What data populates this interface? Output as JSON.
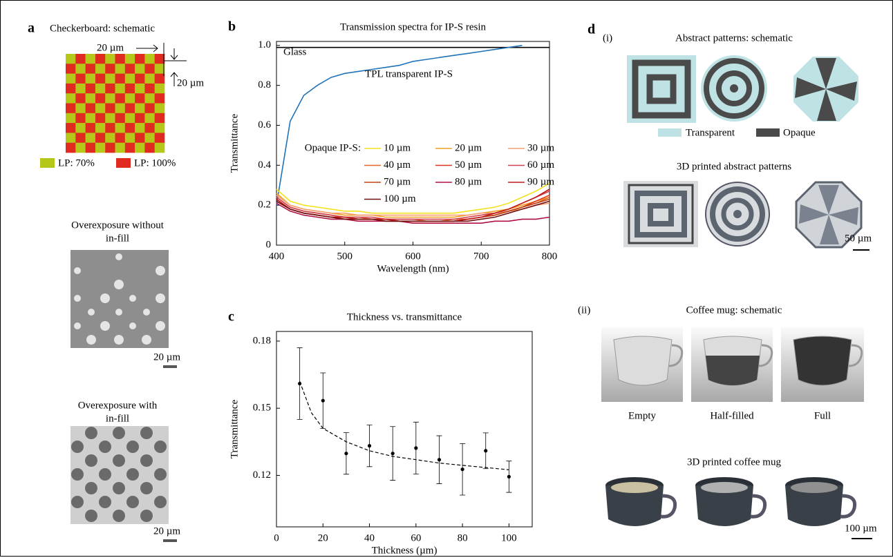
{
  "panel_a": {
    "label": "a",
    "title": "Checkerboard: schematic",
    "dimensions": [
      "20 µm",
      "20 µm"
    ],
    "legend": [
      "LP: 70%",
      "LP: 100%"
    ],
    "micrographs": [
      {
        "title": [
          "Overexposure without",
          "in-fill"
        ],
        "scale": "20 µm"
      },
      {
        "title": [
          "Overexposure with",
          "in-fill"
        ],
        "scale": "20 µm"
      }
    ]
  },
  "panel_d": {
    "label": "d",
    "parts": [
      {
        "label": "(i)",
        "title": "Abstract patterns: schematic",
        "legend": [
          "Transparent",
          "Opaque"
        ],
        "subtitle": "3D printed abstract patterns",
        "scale": "50 µm"
      },
      {
        "label": "(ii)",
        "title": "Coffee mug: schematic",
        "captions": [
          "Empty",
          "Half-filled",
          "Full"
        ],
        "subtitle": "3D printed coffee mug",
        "scale": "100 µm"
      }
    ]
  },
  "chart_data": [
    {
      "type": "line",
      "label": "b",
      "title": "Transmission spectra for IP-S resin",
      "x_label": "Wavelength (nm)",
      "y_label": "Transmittance",
      "xlim": [
        400,
        800
      ],
      "ylim": [
        0,
        1.02
      ],
      "xticks": [
        400,
        500,
        600,
        700,
        800
      ],
      "yticks": [
        0,
        0.2,
        0.4,
        0.6,
        0.8,
        {
          "value": 1,
          "label": "1.0"
        }
      ],
      "legend_title": "Opaque IP-S:",
      "x": [
        400,
        420,
        440,
        460,
        480,
        500,
        520,
        540,
        560,
        580,
        600,
        620,
        640,
        660,
        680,
        700,
        720,
        740,
        760,
        780,
        800
      ],
      "series": [
        {
          "name": "Glass",
          "color": "#000000",
          "values": [
            0.99,
            0.99,
            0.99,
            0.99,
            0.99,
            0.99,
            0.99,
            0.99,
            0.99,
            0.99,
            0.99,
            0.99,
            0.99,
            0.99,
            0.99,
            0.99,
            0.99,
            0.99,
            0.99,
            0.99,
            0.99
          ]
        },
        {
          "name": "TPL transparent IP-S",
          "color": "#1f72b8",
          "values": [
            0.2,
            0.62,
            0.75,
            0.8,
            0.84,
            0.86,
            0.87,
            0.88,
            0.89,
            0.9,
            0.92,
            0.93,
            0.94,
            0.95,
            0.96,
            0.97,
            0.98,
            0.99,
            1.0,
            null,
            null
          ]
        },
        {
          "name": "10 µm",
          "color": "#f2e21a",
          "values": [
            0.28,
            0.22,
            0.2,
            0.19,
            0.18,
            0.17,
            0.17,
            0.16,
            0.16,
            0.16,
            0.16,
            0.16,
            0.16,
            0.16,
            0.17,
            0.18,
            0.19,
            0.21,
            0.24,
            0.27,
            0.31
          ]
        },
        {
          "name": "20 µm",
          "color": "#f0a020",
          "values": [
            0.26,
            0.2,
            0.18,
            0.17,
            0.16,
            0.15,
            0.15,
            0.15,
            0.14,
            0.14,
            0.14,
            0.14,
            0.14,
            0.14,
            0.15,
            0.16,
            0.17,
            0.18,
            0.2,
            0.22,
            0.24
          ]
        },
        {
          "name": "30 µm",
          "color": "#f4a070",
          "values": [
            0.25,
            0.2,
            0.18,
            0.17,
            0.16,
            0.16,
            0.15,
            0.15,
            0.15,
            0.15,
            0.15,
            0.15,
            0.15,
            0.15,
            0.15,
            0.16,
            0.16,
            0.17,
            0.18,
            0.2,
            0.21
          ]
        },
        {
          "name": "40 µm",
          "color": "#e8662a",
          "values": [
            0.24,
            0.19,
            0.17,
            0.16,
            0.15,
            0.14,
            0.14,
            0.13,
            0.13,
            0.13,
            0.13,
            0.12,
            0.12,
            0.13,
            0.13,
            0.14,
            0.15,
            0.17,
            0.19,
            0.21,
            0.24
          ]
        },
        {
          "name": "50 µm",
          "color": "#e03020",
          "values": [
            0.23,
            0.18,
            0.16,
            0.15,
            0.14,
            0.14,
            0.13,
            0.13,
            0.13,
            0.12,
            0.12,
            0.12,
            0.12,
            0.12,
            0.13,
            0.14,
            0.15,
            0.17,
            0.19,
            0.22,
            0.25
          ]
        },
        {
          "name": "60 µm",
          "color": "#d04050",
          "values": [
            0.24,
            0.19,
            0.17,
            0.16,
            0.15,
            0.14,
            0.14,
            0.14,
            0.13,
            0.13,
            0.13,
            0.13,
            0.13,
            0.13,
            0.14,
            0.15,
            0.16,
            0.18,
            0.21,
            0.24,
            0.27
          ]
        },
        {
          "name": "70 µm",
          "color": "#c04010",
          "values": [
            0.22,
            0.18,
            0.16,
            0.15,
            0.14,
            0.13,
            0.13,
            0.13,
            0.12,
            0.12,
            0.12,
            0.12,
            0.12,
            0.12,
            0.13,
            0.14,
            0.15,
            0.17,
            0.19,
            0.21,
            0.23
          ]
        },
        {
          "name": "80 µm",
          "color": "#b01040",
          "values": [
            0.21,
            0.17,
            0.15,
            0.14,
            0.13,
            0.13,
            0.12,
            0.12,
            0.12,
            0.12,
            0.11,
            0.11,
            0.11,
            0.11,
            0.11,
            0.11,
            0.12,
            0.12,
            0.13,
            0.13,
            0.14
          ]
        },
        {
          "name": "90 µm",
          "color": "#c01818",
          "values": [
            0.23,
            0.18,
            0.16,
            0.15,
            0.14,
            0.14,
            0.13,
            0.13,
            0.13,
            0.12,
            0.12,
            0.12,
            0.12,
            0.12,
            0.13,
            0.14,
            0.16,
            0.18,
            0.21,
            0.24,
            0.28
          ]
        },
        {
          "name": "100 µm",
          "color": "#701010",
          "values": [
            0.22,
            0.18,
            0.16,
            0.15,
            0.14,
            0.13,
            0.13,
            0.13,
            0.12,
            0.12,
            0.12,
            0.12,
            0.12,
            0.12,
            0.12,
            0.13,
            0.14,
            0.16,
            0.18,
            0.2,
            0.22
          ]
        }
      ]
    },
    {
      "type": "scatter",
      "label": "c",
      "title": "Thickness vs. transmittance",
      "x_label": "Thickness (µm)",
      "y_label": "Transmittance",
      "xlim": [
        0,
        110
      ],
      "ylim": [
        0.097,
        0.1843
      ],
      "xticks": [
        0,
        20,
        40,
        60,
        80,
        100
      ],
      "yticks": [
        0.12,
        0.15,
        0.18
      ],
      "color": "#000000",
      "x": [
        10,
        20,
        30,
        40,
        50,
        60,
        70,
        80,
        90,
        100
      ],
      "values": [
        0.161,
        0.1534,
        0.1298,
        0.1332,
        0.1298,
        0.1322,
        0.127,
        0.1227,
        0.131,
        0.1194
      ],
      "errors": [
        0.016,
        0.0124,
        0.0093,
        0.0093,
        0.012,
        0.0116,
        0.0107,
        0.0115,
        0.008,
        0.007
      ],
      "fit": {
        "color": "#000000",
        "dashed": true,
        "x": [
          10,
          15,
          20,
          30,
          40,
          50,
          60,
          70,
          80,
          90,
          100
        ],
        "y": [
          0.162,
          0.148,
          0.141,
          0.135,
          0.131,
          0.1285,
          0.127,
          0.1255,
          0.1245,
          0.1235,
          0.1225
        ]
      }
    }
  ]
}
